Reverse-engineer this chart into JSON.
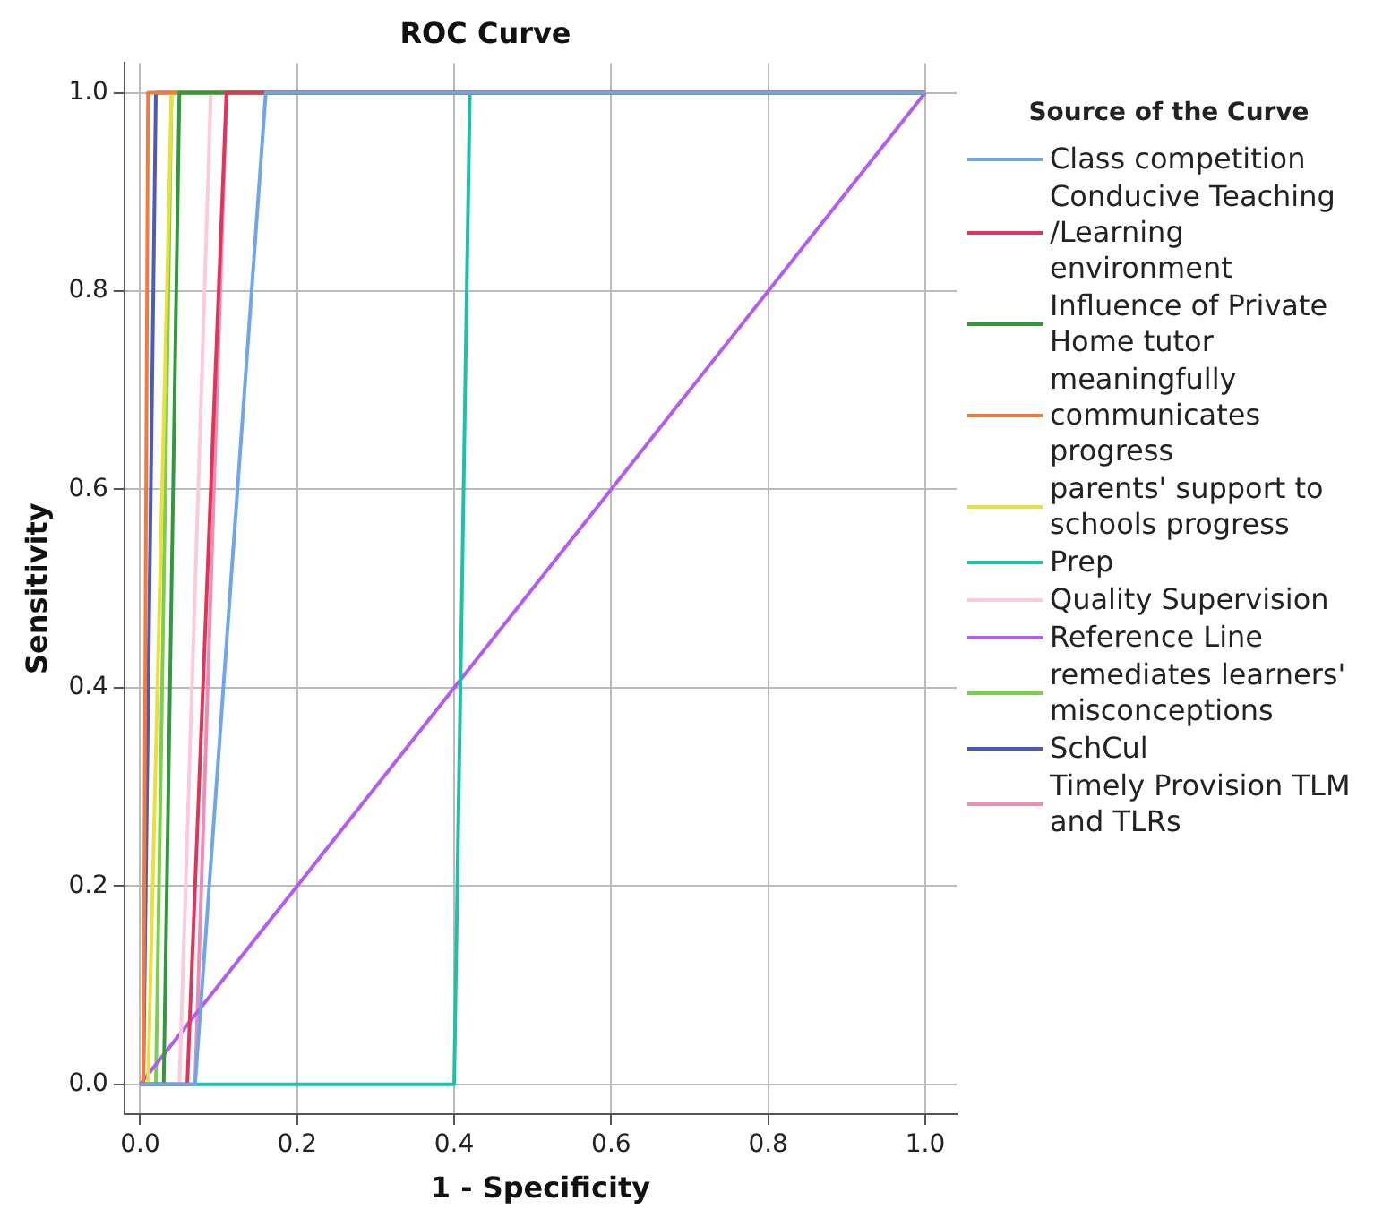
{
  "chart_data": {
    "type": "line",
    "title": "ROC Curve",
    "xlabel": "1 - Specificity",
    "ylabel": "Sensitivity",
    "legend_title": "Source of the Curve",
    "legend": "right",
    "grid": true,
    "marker": "none",
    "line_style": "solid",
    "xlim": [
      -0.02,
      1.04
    ],
    "ylim": [
      -0.03,
      1.03
    ],
    "xticks": [
      {
        "value": 0,
        "label": "0.0"
      },
      {
        "value": 0.2,
        "label": "0.2"
      },
      {
        "value": 0.4,
        "label": "0.4"
      },
      {
        "value": 0.6,
        "label": "0.6"
      },
      {
        "value": 0.8,
        "label": "0.8"
      },
      {
        "value": 1,
        "label": "1.0"
      }
    ],
    "yticks": [
      {
        "value": 0,
        "label": "0.0"
      },
      {
        "value": 0.2,
        "label": "0.2"
      },
      {
        "value": 0.4,
        "label": "0.4"
      },
      {
        "value": 0.6,
        "label": "0.6"
      },
      {
        "value": 0.8,
        "label": "0.8"
      },
      {
        "value": 1,
        "label": "1.0"
      }
    ],
    "series": [
      {
        "name": "Class competition",
        "color": "#6ea6e8",
        "x": [
          0,
          0.07,
          0.16,
          1
        ],
        "values": [
          0,
          0,
          1,
          1
        ]
      },
      {
        "name": "Conducive Teaching /Learning environment",
        "color": "#e0345a",
        "x": [
          0,
          0.06,
          0.11,
          1
        ],
        "values": [
          0,
          0,
          1,
          1
        ]
      },
      {
        "name": "Influence of Private Home tutor",
        "color": "#2e9a3c",
        "x": [
          0,
          0.03,
          0.05,
          1
        ],
        "values": [
          0,
          0,
          1,
          1
        ]
      },
      {
        "name": "meaningfully communicates progress",
        "color": "#f47a3c",
        "x": [
          0,
          0.004,
          0.01,
          1
        ],
        "values": [
          0,
          0,
          1,
          1
        ]
      },
      {
        "name": "parents' support to schools progress",
        "color": "#e8e03c",
        "x": [
          0,
          0.01,
          0.04,
          1
        ],
        "values": [
          0,
          0,
          1,
          1
        ]
      },
      {
        "name": "Prep",
        "color": "#1ec0a8",
        "x": [
          0,
          0.4,
          0.42,
          1
        ],
        "values": [
          0,
          0,
          1,
          1
        ]
      },
      {
        "name": "Quality Supervision",
        "color": "#ffc8e0",
        "x": [
          0,
          0.05,
          0.09,
          1
        ],
        "values": [
          0,
          0,
          1,
          1
        ]
      },
      {
        "name": "Reference Line",
        "color": "#b45cf0",
        "x": [
          0,
          1
        ],
        "values": [
          0,
          1
        ]
      },
      {
        "name": "remediates learners' misconceptions",
        "color": "#7ad04c",
        "x": [
          0,
          0.02,
          0.04,
          1
        ],
        "values": [
          0,
          0,
          1,
          1
        ]
      },
      {
        "name": "SchCul",
        "color": "#4a5cb8",
        "x": [
          0,
          0.004,
          0.02,
          1
        ],
        "values": [
          0,
          0,
          1,
          1
        ]
      },
      {
        "name": "Timely Provision TLM and TLRs",
        "color": "#f08cb4",
        "x": [
          0,
          0.07,
          0.11,
          1
        ],
        "values": [
          0,
          0,
          1,
          1
        ]
      }
    ]
  }
}
